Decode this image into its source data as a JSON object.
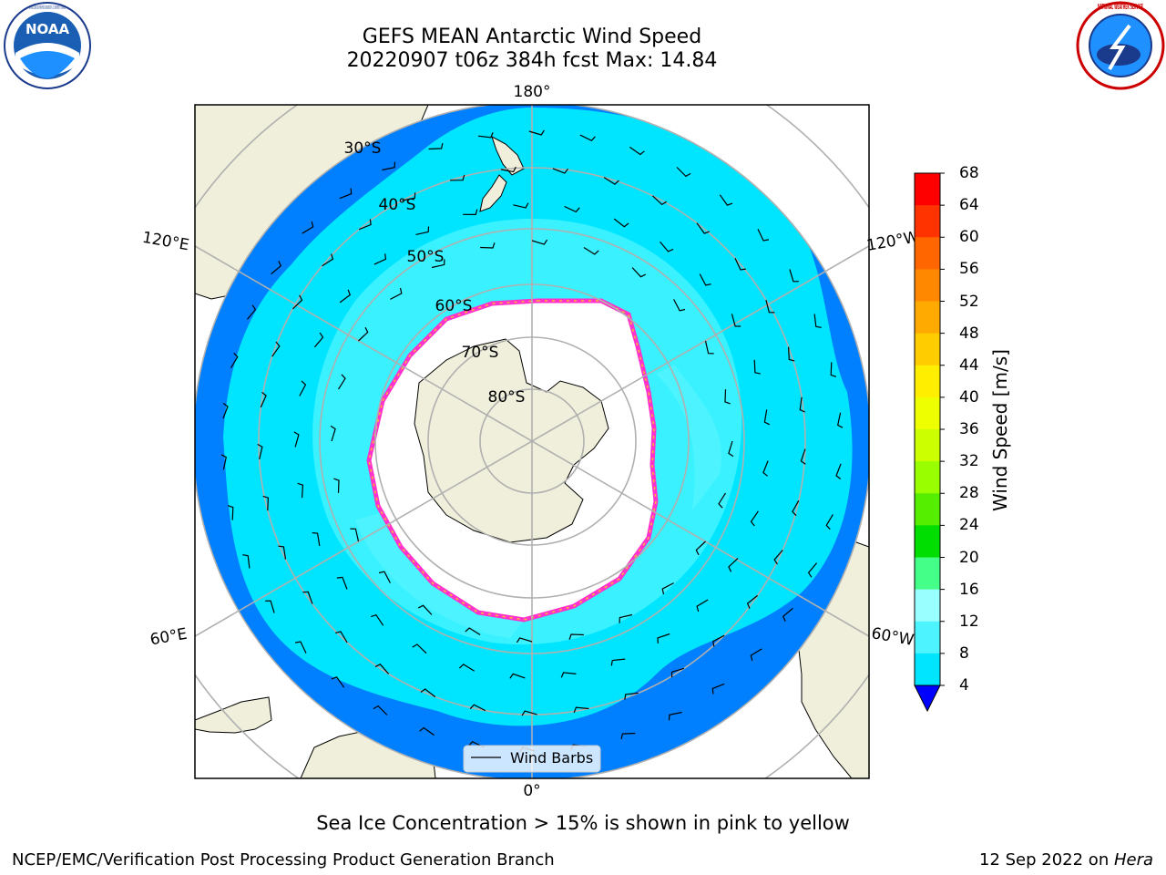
{
  "header": {
    "title_line1": "GEFS MEAN Antarctic Wind Speed",
    "title_line2": "20220907 t06z 384h fcst   Max: 14.84"
  },
  "logos": {
    "left": {
      "text": "NOAA",
      "ring_text": "NATIONAL OCEANIC AND ATMOSPHERIC ADMINISTRATION · U.S. DEPARTMENT OF COMMERCE"
    },
    "right": {
      "ring_text": "NATIONAL WEATHER SERVICE"
    }
  },
  "map": {
    "projection": "south-polar-stereographic",
    "longitude_labels": [
      "180°",
      "120°E",
      "120°W",
      "60°E",
      "60°W",
      "0°"
    ],
    "latitude_labels": [
      "30°S",
      "40°S",
      "50°S",
      "60°S",
      "70°S",
      "80°S"
    ],
    "legend": {
      "entry": "Wind Barbs"
    },
    "colors": {
      "land": "#efefdb",
      "ice_free_low": "#0080ff",
      "band_8_12": "#00e5ff",
      "band_12_16": "#4df4ff",
      "sea_ice_edge": "#ff33cc",
      "sea_ice_edge2": "#ffb833",
      "ice_interior": "#ffffff",
      "grid": "#b0b0b0"
    }
  },
  "colorbar": {
    "label": "Wind Speed [m/s]",
    "ticks": [
      "68",
      "64",
      "60",
      "56",
      "52",
      "48",
      "44",
      "40",
      "36",
      "32",
      "28",
      "24",
      "20",
      "16",
      "12",
      "8",
      "4"
    ],
    "colors": [
      "#ff0000",
      "#ff3300",
      "#ff6600",
      "#ff8800",
      "#ffaa00",
      "#ffcc00",
      "#ffee00",
      "#eeff00",
      "#ccff00",
      "#99ff00",
      "#55ee00",
      "#00dd00",
      "#44ff88",
      "#99ffff",
      "#4df4ff",
      "#00e5ff",
      "#0080ff"
    ],
    "extend_color": "#0000ff"
  },
  "caption": "Sea Ice Concentration > 15% is shown in pink to yellow",
  "footer": {
    "left": "NCEP/EMC/Verification Post Processing Product Generation Branch",
    "right_date": "12 Sep 2022 on ",
    "right_host": "Hera"
  }
}
